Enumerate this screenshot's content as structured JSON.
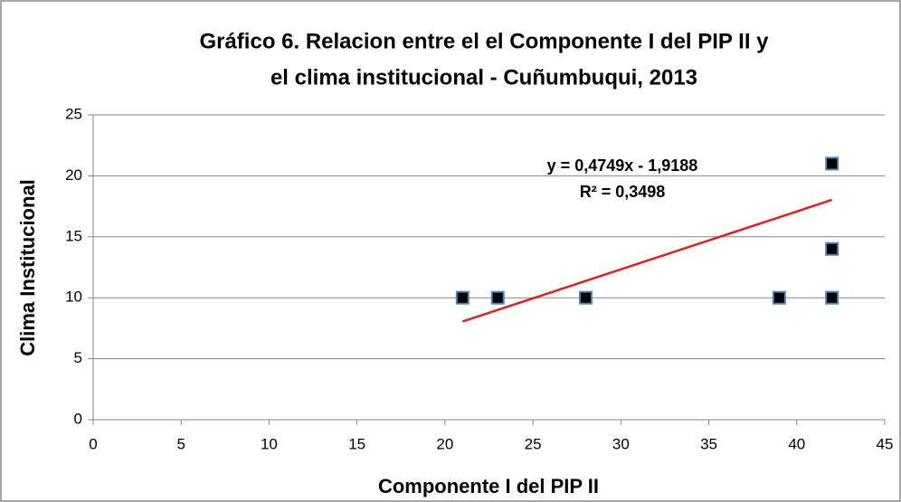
{
  "chart_data": {
    "type": "scatter",
    "title": [
      "Gráfico 6. Relacion entre el el Componente I del PIP II y",
      "el clima institucional - Cuñumbuqui, 2013"
    ],
    "x_label": "Componente I del PIP II",
    "y_label": "Clima Institucional",
    "x": [
      21,
      23,
      28,
      39,
      42,
      42,
      42
    ],
    "values": [
      10,
      10,
      10,
      10,
      10,
      14,
      21
    ],
    "color": "#000000",
    "edge_color": "#4f81bd",
    "trendline": {
      "x": [
        21,
        42
      ],
      "values": [
        8.0541,
        18.027
      ],
      "color": "#e02020",
      "equation": "y = 0,4749x - 1,9188",
      "r_squared": "R² = 0,3498"
    },
    "xlim": [
      0,
      45
    ],
    "xticks": [
      0,
      5,
      10,
      15,
      20,
      25,
      30,
      35,
      40,
      45
    ],
    "ylim": [
      0,
      25
    ],
    "yticks": [
      0,
      5,
      10,
      15,
      20,
      25
    ],
    "grid": true
  }
}
